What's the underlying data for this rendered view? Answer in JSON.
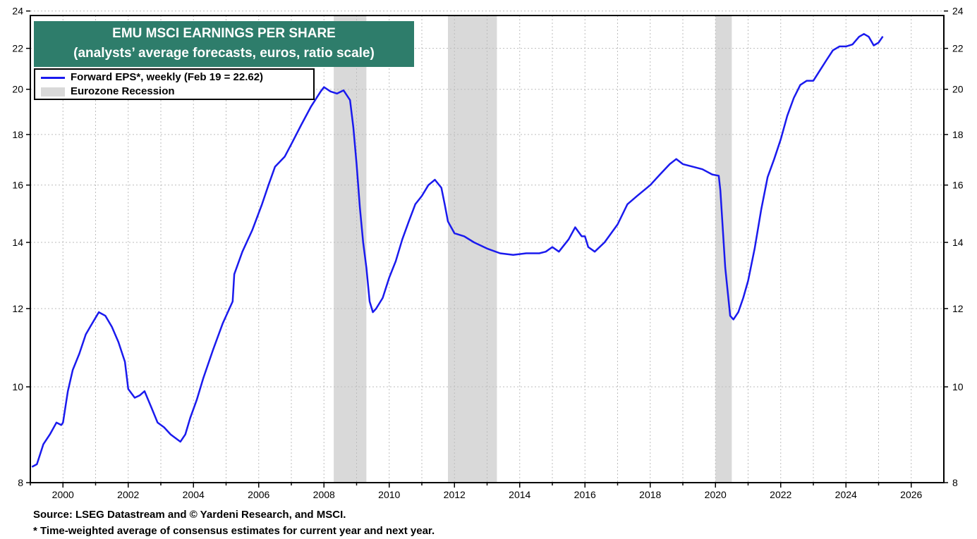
{
  "title": {
    "line1": "EMU MSCI EARNINGS PER SHARE",
    "line2": "(analysts’ average forecasts, euros, ratio scale)"
  },
  "footnotes": {
    "source": "Source: LSEG Datastream and © Yardeni Research, and MSCI.",
    "note": "* Time-weighted average of consensus estimates for current year and next year."
  },
  "colors": {
    "series": "#1a1aee",
    "recession": "#d9d9d9",
    "title_bg": "#2e7d6b",
    "grid": "#bdbdbd"
  },
  "chart_data": {
    "type": "line",
    "title": "EMU MSCI EARNINGS PER SHARE",
    "subtitle": "(analysts’ average forecasts, euros, ratio scale)",
    "xlabel": "",
    "ylabel": "",
    "y_scale": "log",
    "xlim": [
      1999.0,
      2027.0
    ],
    "ylim": [
      8,
      24
    ],
    "grid": true,
    "legend_position": "top-left",
    "x_ticks": [
      2000,
      2002,
      2004,
      2006,
      2008,
      2010,
      2012,
      2014,
      2016,
      2018,
      2020,
      2022,
      2024,
      2026
    ],
    "y_ticks": [
      8,
      10,
      12,
      14,
      16,
      18,
      20,
      22,
      24
    ],
    "recessions": [
      {
        "start": 2008.3,
        "end": 2009.3
      },
      {
        "start": 2011.8,
        "end": 2013.3
      },
      {
        "start": 2020.0,
        "end": 2020.5
      }
    ],
    "legend": [
      {
        "label": "Forward EPS*, weekly (Feb 19 = 22.62)",
        "kind": "line"
      },
      {
        "label": "Eurozone Recession",
        "kind": "area"
      }
    ],
    "series": [
      {
        "name": "Forward EPS*, weekly (Feb 19 = 22.62)",
        "x": [
          1999.05,
          1999.2,
          1999.4,
          1999.6,
          1999.8,
          1999.95,
          2000.0,
          2000.15,
          2000.3,
          2000.5,
          2000.7,
          2000.9,
          2001.1,
          2001.3,
          2001.5,
          2001.7,
          2001.9,
          2002.0,
          2002.2,
          2002.35,
          2002.5,
          2002.7,
          2002.9,
          2003.1,
          2003.3,
          2003.5,
          2003.6,
          2003.75,
          2003.9,
          2004.1,
          2004.3,
          2004.6,
          2004.9,
          2005.2,
          2005.25,
          2005.5,
          2005.8,
          2006.1,
          2006.3,
          2006.5,
          2006.8,
          2007.0,
          2007.3,
          2007.6,
          2007.9,
          2008.0,
          2008.2,
          2008.4,
          2008.6,
          2008.8,
          2008.9,
          2009.0,
          2009.1,
          2009.2,
          2009.3,
          2009.4,
          2009.5,
          2009.6,
          2009.8,
          2010.0,
          2010.2,
          2010.4,
          2010.6,
          2010.8,
          2011.0,
          2011.2,
          2011.4,
          2011.6,
          2011.7,
          2011.8,
          2012.0,
          2012.3,
          2012.6,
          2013.0,
          2013.4,
          2013.8,
          2014.2,
          2014.6,
          2014.8,
          2015.0,
          2015.2,
          2015.5,
          2015.7,
          2015.9,
          2016.0,
          2016.1,
          2016.3,
          2016.6,
          2017.0,
          2017.3,
          2017.6,
          2018.0,
          2018.3,
          2018.6,
          2018.8,
          2019.0,
          2019.3,
          2019.6,
          2019.9,
          2020.1,
          2020.15,
          2020.3,
          2020.45,
          2020.55,
          2020.7,
          2020.85,
          2021.0,
          2021.2,
          2021.4,
          2021.6,
          2021.8,
          2022.0,
          2022.2,
          2022.4,
          2022.6,
          2022.8,
          2023.0,
          2023.2,
          2023.4,
          2023.6,
          2023.8,
          2024.0,
          2024.2,
          2024.4,
          2024.55,
          2024.7,
          2024.85,
          2025.0,
          2025.13
        ],
        "values": [
          8.3,
          8.35,
          8.75,
          8.95,
          9.2,
          9.15,
          9.2,
          9.9,
          10.4,
          10.8,
          11.3,
          11.6,
          11.9,
          11.8,
          11.5,
          11.1,
          10.6,
          9.95,
          9.75,
          9.8,
          9.9,
          9.55,
          9.2,
          9.1,
          8.95,
          8.85,
          8.8,
          8.95,
          9.3,
          9.7,
          10.2,
          10.9,
          11.6,
          12.2,
          13.0,
          13.7,
          14.4,
          15.3,
          16.0,
          16.7,
          17.1,
          17.6,
          18.4,
          19.2,
          19.9,
          20.1,
          19.9,
          19.8,
          19.95,
          19.5,
          18.3,
          16.8,
          15.2,
          14.0,
          13.2,
          12.2,
          11.9,
          12.0,
          12.3,
          12.9,
          13.4,
          14.1,
          14.7,
          15.3,
          15.6,
          16.0,
          16.2,
          15.9,
          15.3,
          14.7,
          14.3,
          14.2,
          14.0,
          13.8,
          13.65,
          13.6,
          13.65,
          13.65,
          13.7,
          13.85,
          13.7,
          14.1,
          14.5,
          14.2,
          14.2,
          13.85,
          13.7,
          14.0,
          14.6,
          15.3,
          15.6,
          16.0,
          16.4,
          16.8,
          17.0,
          16.8,
          16.7,
          16.6,
          16.4,
          16.35,
          15.8,
          13.2,
          11.8,
          11.7,
          11.9,
          12.3,
          12.8,
          13.8,
          15.1,
          16.3,
          17.0,
          17.8,
          18.8,
          19.6,
          20.2,
          20.4,
          20.4,
          20.9,
          21.4,
          21.9,
          22.1,
          22.1,
          22.2,
          22.6,
          22.75,
          22.6,
          22.15,
          22.3,
          22.62
        ]
      }
    ]
  }
}
